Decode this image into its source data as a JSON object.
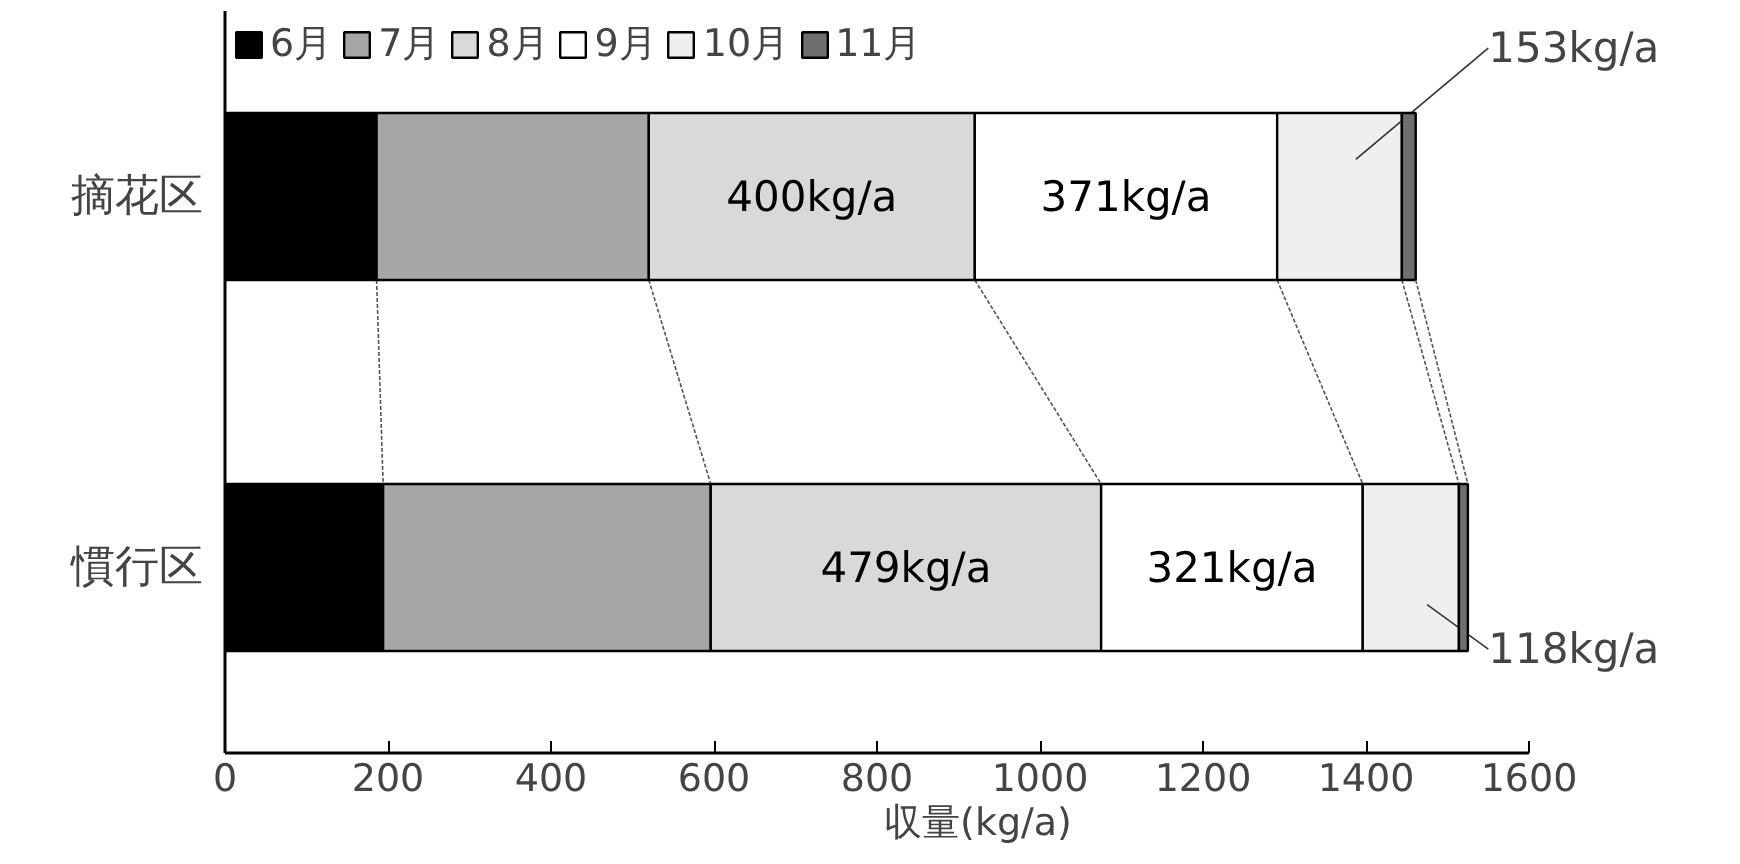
{
  "chart_data": {
    "type": "bar",
    "orientation": "horizontal",
    "stacked": true,
    "categories": [
      "摘花区",
      "慣行区"
    ],
    "xlabel": "収量(kg/a)",
    "xlim": [
      0,
      1600
    ],
    "xticks": [
      0,
      200,
      400,
      600,
      800,
      1000,
      1200,
      1400,
      1600
    ],
    "grid": false,
    "legend": "top",
    "series": [
      {
        "name": "6月",
        "color": "#000000",
        "values": [
          186,
          194
        ]
      },
      {
        "name": "7月",
        "color": "#a6a6a6",
        "values": [
          334,
          402
        ]
      },
      {
        "name": "8月",
        "color": "#d9d9d9",
        "values": [
          400,
          479
        ],
        "value_labels": [
          "400kg/a",
          "479kg/a"
        ]
      },
      {
        "name": "9月",
        "color": "#ffffff",
        "values": [
          371,
          321
        ],
        "value_labels": [
          "371kg/a",
          "321kg/a"
        ]
      },
      {
        "name": "10月",
        "color": "#efefef",
        "values": [
          153,
          118
        ],
        "value_labels": [
          "153kg/a",
          "118kg/a"
        ]
      },
      {
        "name": "11月",
        "color": "#6f6f6f",
        "values": [
          17,
          11
        ]
      }
    ]
  }
}
